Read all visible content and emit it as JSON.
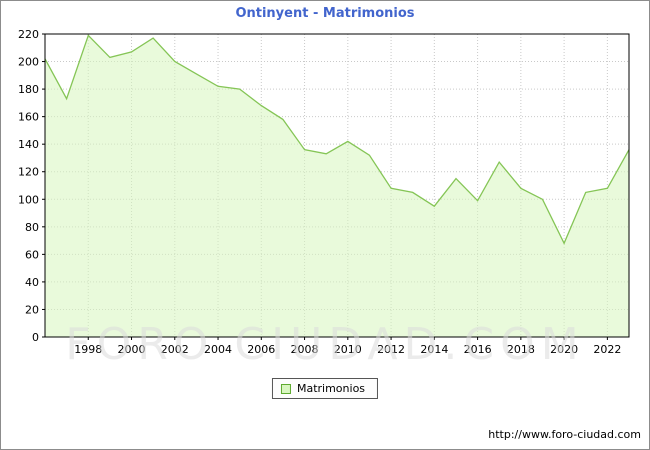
{
  "title": "Ontinyent - Matrimonios",
  "legend": {
    "label": "Matrimonios"
  },
  "footer": {
    "url": "http://www.foro-ciudad.com"
  },
  "watermark": "FORO CIUDAD.COM",
  "colors": {
    "title": "#4265cd",
    "line": "#85c556",
    "fill": "rgba(215,245,190,0.55)",
    "grid": "#c9c9c9",
    "axis": "#000000",
    "tick_text": "#000000"
  },
  "chart_data": {
    "type": "area",
    "title": "Ontinyent - Matrimonios",
    "xlabel": "",
    "ylabel": "",
    "x": [
      1996,
      1997,
      1998,
      1999,
      2000,
      2001,
      2002,
      2003,
      2004,
      2005,
      2006,
      2007,
      2008,
      2009,
      2010,
      2011,
      2012,
      2013,
      2014,
      2015,
      2016,
      2017,
      2018,
      2019,
      2020,
      2021,
      2022,
      2023
    ],
    "values": [
      202,
      173,
      219,
      203,
      207,
      217,
      200,
      191,
      182,
      180,
      168,
      158,
      136,
      133,
      142,
      132,
      108,
      105,
      95,
      115,
      99,
      127,
      108,
      100,
      68,
      105,
      108,
      136
    ],
    "series_name": "Matrimonios",
    "ylim": [
      0,
      220
    ],
    "y_tick_step": 20,
    "x_tick_years": [
      1998,
      2000,
      2002,
      2004,
      2006,
      2008,
      2010,
      2012,
      2014,
      2016,
      2018,
      2020,
      2022
    ],
    "grid": true,
    "legend_position": "bottom"
  }
}
